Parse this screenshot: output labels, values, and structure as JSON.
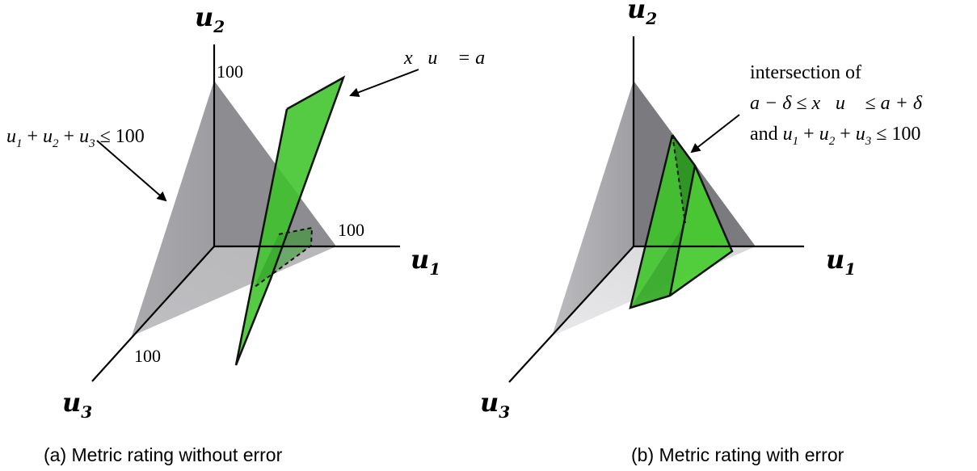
{
  "panel_a": {
    "axis_u1": "u",
    "axis_u1_sub": "1",
    "axis_u2": "u",
    "axis_u2_sub": "2",
    "axis_u3": "u",
    "axis_u3_sub": "3",
    "tick_u2": "100",
    "tick_u1": "100",
    "tick_u3": "100",
    "constraint_label": "u1 + u2 + u3 ≤ 100",
    "plane_label": "x⃗u⃗ = a",
    "caption": "(a) Metric rating without error"
  },
  "panel_b": {
    "axis_u1": "u",
    "axis_u1_sub": "1",
    "axis_u2": "u",
    "axis_u2_sub": "2",
    "axis_u3": "u",
    "axis_u3_sub": "3",
    "annotation_line1": "intersection of",
    "annotation_line2": "a − δ ≤ x⃗u⃗ ≤ a + δ",
    "annotation_line3": "and u1 + u2 + u3 ≤ 100",
    "caption": "(b) Metric rating with error"
  },
  "colors": {
    "green": "#3ec42a",
    "dark_green": "#2c8f25",
    "gray_face": "#7f7f84",
    "light_gray": "#cfcfd2"
  }
}
